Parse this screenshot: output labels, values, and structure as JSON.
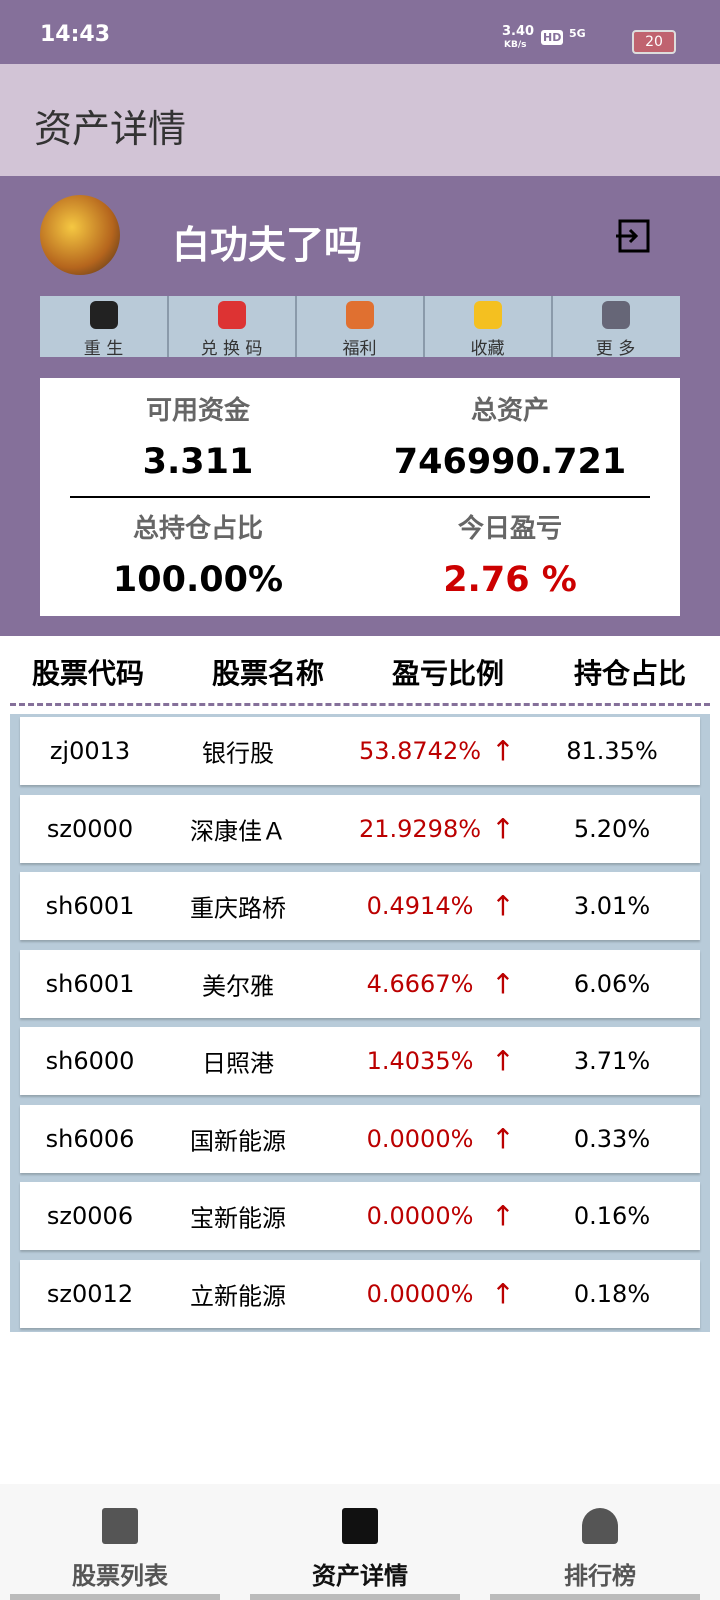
{
  "status_bar": {
    "time": "14:43",
    "speed": "3.40",
    "speed_unit": "KB/s",
    "hd": "HD",
    "network": "5G",
    "battery": "20"
  },
  "header": {
    "title": "资产详情"
  },
  "profile": {
    "username": "白功夫了吗"
  },
  "menu": [
    "重 生",
    "兑 换 码",
    "福利",
    "收藏",
    "更 多"
  ],
  "stats": [
    {
      "label": "可用资金",
      "value": "3.311"
    },
    {
      "label": "总资产",
      "value": "746990.721"
    },
    {
      "label": "总持仓占比",
      "value": "100.00%"
    },
    {
      "label": "今日盈亏",
      "value": "2.76 %"
    }
  ],
  "table": {
    "headers": [
      "股票代码",
      "股票名称",
      "盈亏比例",
      "持仓占比"
    ],
    "rows": [
      [
        "zj0013",
        "银行股",
        "53.8742%",
        "↑",
        "81.35%"
      ],
      [
        "sz0000",
        "深康佳Ａ",
        "21.9298%",
        "↑",
        "5.20%"
      ],
      [
        "sh6001",
        "重庆路桥",
        "0.4914%",
        "↑",
        "3.01%"
      ],
      [
        "sh6001",
        "美尔雅",
        "4.6667%",
        "↑",
        "6.06%"
      ],
      [
        "sh6000",
        "日照港",
        "1.4035%",
        "↑",
        "3.71%"
      ],
      [
        "sh6006",
        "国新能源",
        "0.0000%",
        "↑",
        "0.33%"
      ],
      [
        "sz0006",
        "宝新能源",
        "0.0000%",
        "↑",
        "0.16%"
      ],
      [
        "sz0012",
        "立新能源",
        "0.0000%",
        "↑",
        "0.18%"
      ]
    ]
  },
  "bottom_nav": [
    "股票列表",
    "资产详情",
    "排行榜"
  ]
}
